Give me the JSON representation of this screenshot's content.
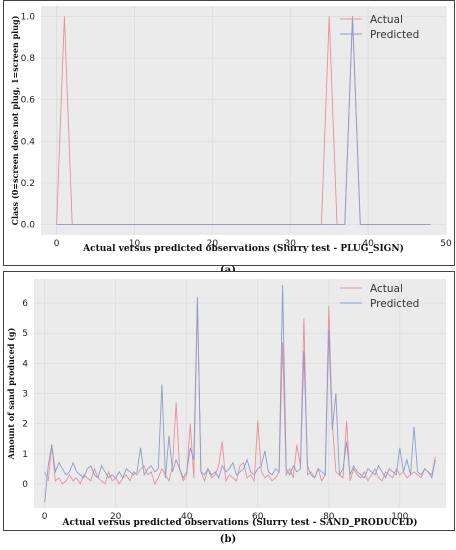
{
  "chart_data": [
    {
      "type": "line",
      "panel_label": "(a)",
      "xlabel": "Actual versus predicted observations (Slurry test - PLUG_SIGN)",
      "ylabel": "Class (0=screen does not plug, 1=screen plug)",
      "xlim": [
        -2,
        50
      ],
      "ylim": [
        -0.05,
        1.05
      ],
      "xticks": [
        0,
        10,
        20,
        30,
        40,
        50
      ],
      "yticks": [
        0.0,
        0.2,
        0.4,
        0.6,
        0.8,
        1.0
      ],
      "grid": true,
      "legend": "top-right",
      "x": [
        0,
        1,
        2,
        3,
        4,
        5,
        6,
        7,
        8,
        9,
        10,
        11,
        12,
        13,
        14,
        15,
        16,
        17,
        18,
        19,
        20,
        21,
        22,
        23,
        24,
        25,
        26,
        27,
        28,
        29,
        30,
        31,
        32,
        33,
        34,
        35,
        36,
        37,
        38,
        39,
        40,
        41,
        42,
        43,
        44,
        45,
        46,
        47,
        48
      ],
      "series": [
        {
          "name": "Actual",
          "color": "#e8909a",
          "values": [
            0,
            1,
            0,
            0,
            0,
            0,
            0,
            0,
            0,
            0,
            0,
            0,
            0,
            0,
            0,
            0,
            0,
            0,
            0,
            0,
            0,
            0,
            0,
            0,
            0,
            0,
            0,
            0,
            0,
            0,
            0,
            0,
            0,
            0,
            0,
            1,
            0,
            0,
            1,
            0,
            0,
            0,
            0,
            0,
            0,
            0,
            0,
            0,
            0
          ]
        },
        {
          "name": "Predicted",
          "color": "#8d9cc9",
          "values": [
            0,
            0,
            0,
            0,
            0,
            0,
            0,
            0,
            0,
            0,
            0,
            0,
            0,
            0,
            0,
            0,
            0,
            0,
            0,
            0,
            0,
            0,
            0,
            0,
            0,
            0,
            0,
            0,
            0,
            0,
            0,
            0,
            0,
            0,
            0,
            0,
            0,
            0,
            1,
            0,
            0,
            0,
            0,
            0,
            0,
            0,
            0,
            0,
            0
          ]
        }
      ]
    },
    {
      "type": "line",
      "panel_label": "(b)",
      "xlabel": "Actual versus predicted observations (Slurry test - SAND_PRODUCED)",
      "ylabel": "Amount of sand produced (g)",
      "xlim": [
        -3,
        113
      ],
      "ylim": [
        -0.8,
        6.8
      ],
      "xticks": [
        0,
        20,
        40,
        60,
        80,
        100
      ],
      "yticks": [
        0,
        1,
        2,
        3,
        4,
        5,
        6
      ],
      "grid": true,
      "legend": "top-right",
      "x": [
        0,
        1,
        2,
        3,
        4,
        5,
        6,
        7,
        8,
        9,
        10,
        11,
        12,
        13,
        14,
        15,
        16,
        17,
        18,
        19,
        20,
        21,
        22,
        23,
        24,
        25,
        26,
        27,
        28,
        29,
        30,
        31,
        32,
        33,
        34,
        35,
        36,
        37,
        38,
        39,
        40,
        41,
        42,
        43,
        44,
        45,
        46,
        47,
        48,
        49,
        50,
        51,
        52,
        53,
        54,
        55,
        56,
        57,
        58,
        59,
        60,
        61,
        62,
        63,
        64,
        65,
        66,
        67,
        68,
        69,
        70,
        71,
        72,
        73,
        74,
        75,
        76,
        77,
        78,
        79,
        80,
        81,
        82,
        83,
        84,
        85,
        86,
        87,
        88,
        89,
        90,
        91,
        92,
        93,
        94,
        95,
        96,
        97,
        98,
        99,
        100,
        101,
        102,
        103,
        104,
        105,
        106,
        107,
        108,
        109,
        110
      ],
      "series": [
        {
          "name": "Actual",
          "color": "#e8909a",
          "values": [
            0.4,
            0.1,
            1.3,
            0.1,
            0.2,
            0.0,
            0.1,
            0.3,
            0.1,
            0.2,
            0.0,
            0.3,
            0.2,
            0.1,
            0.5,
            0.2,
            0.1,
            0.0,
            0.4,
            0.1,
            0.2,
            0.0,
            0.2,
            0.3,
            0.1,
            0.4,
            0.3,
            0.5,
            0.6,
            0.3,
            0.4,
            0.0,
            0.2,
            0.5,
            0.3,
            0.1,
            0.6,
            2.7,
            0.5,
            0.1,
            0.3,
            2.0,
            0.2,
            6.1,
            0.4,
            0.1,
            0.5,
            0.2,
            0.3,
            0.6,
            1.4,
            0.1,
            0.3,
            0.2,
            0.1,
            0.6,
            0.7,
            0.2,
            0.3,
            0.1,
            2.1,
            0.4,
            0.2,
            0.3,
            0.1,
            0.2,
            0.4,
            4.7,
            0.3,
            0.5,
            0.2,
            1.3,
            0.6,
            5.5,
            0.3,
            0.4,
            0.2,
            0.5,
            0.1,
            0.3,
            5.9,
            2.0,
            0.4,
            0.3,
            0.2,
            2.1,
            0.1,
            0.5,
            0.3,
            0.2,
            0.4,
            0.1,
            0.3,
            0.5,
            0.2,
            0.1,
            0.4,
            0.3,
            0.2,
            0.5,
            0.3,
            0.4,
            0.2,
            0.3,
            0.4,
            0.3,
            0.2,
            0.5,
            0.4,
            0.3,
            0.9
          ]
        },
        {
          "name": "Predicted",
          "color": "#8d9cc9",
          "values": [
            -0.6,
            0.6,
            1.3,
            0.4,
            0.7,
            0.5,
            0.3,
            0.4,
            0.7,
            0.4,
            0.3,
            0.2,
            0.5,
            0.6,
            0.3,
            0.2,
            0.6,
            0.4,
            0.2,
            0.3,
            0.2,
            0.4,
            0.2,
            0.5,
            0.4,
            0.3,
            0.4,
            1.2,
            0.3,
            0.5,
            0.6,
            0.4,
            0.5,
            3.3,
            0.2,
            1.6,
            0.4,
            0.8,
            0.5,
            0.2,
            0.4,
            1.2,
            0.8,
            6.2,
            0.4,
            0.3,
            0.5,
            0.3,
            0.4,
            0.2,
            0.6,
            0.4,
            0.5,
            0.7,
            0.3,
            0.4,
            0.5,
            0.8,
            0.4,
            0.3,
            0.5,
            0.6,
            1.1,
            0.4,
            0.3,
            0.5,
            0.4,
            6.6,
            0.5,
            0.3,
            0.6,
            0.4,
            0.5,
            4.4,
            0.6,
            0.3,
            0.2,
            0.5,
            0.4,
            0.3,
            5.1,
            1.8,
            3.0,
            0.3,
            0.5,
            1.4,
            0.3,
            0.6,
            0.4,
            0.3,
            0.2,
            0.5,
            0.4,
            0.3,
            0.6,
            0.4,
            0.2,
            0.5,
            0.4,
            0.3,
            1.2,
            0.4,
            0.8,
            0.3,
            1.9,
            0.4,
            0.3,
            0.5,
            0.4,
            0.2,
            0.8
          ]
        }
      ]
    }
  ]
}
